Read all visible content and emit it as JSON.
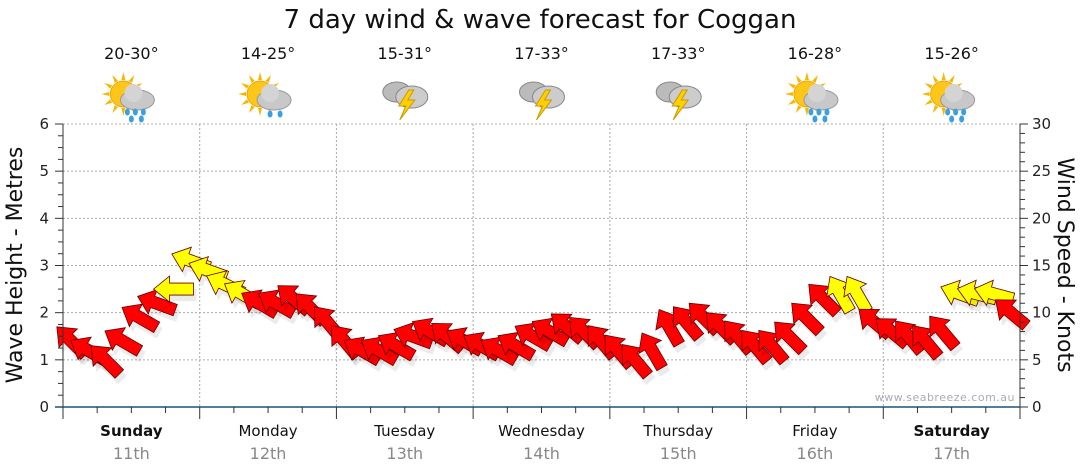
{
  "chart_data": {
    "type": "scatter",
    "title": "7 day wind & wave forecast for Coggan",
    "ylabel_left": "Wave Height - Metres",
    "ylabel_right": "Wind Speed - Knots",
    "ylim_left": [
      0,
      6
    ],
    "ylim_right": [
      0,
      30
    ],
    "yticks_left": [
      "0",
      "1",
      "2",
      "3",
      "4",
      "5",
      "6"
    ],
    "yticks_right": [
      "0",
      "5",
      "10",
      "15",
      "20",
      "25",
      "30"
    ],
    "grid": true,
    "watermark": "www.seabreeze.com.au",
    "days": [
      {
        "day": "Sunday",
        "date": "11th",
        "bold": true,
        "temp": "20-30°",
        "icon": "sun-cloud-rain-icon"
      },
      {
        "day": "Monday",
        "date": "12th",
        "bold": false,
        "temp": "14-25°",
        "icon": "sun-cloud-showers-icon"
      },
      {
        "day": "Tuesday",
        "date": "13th",
        "bold": false,
        "temp": "15-31°",
        "icon": "thunderstorm-icon"
      },
      {
        "day": "Wednesday",
        "date": "14th",
        "bold": false,
        "temp": "17-33°",
        "icon": "thunderstorm-icon"
      },
      {
        "day": "Thursday",
        "date": "15th",
        "bold": false,
        "temp": "17-33°",
        "icon": "thunderstorm-icon"
      },
      {
        "day": "Friday",
        "date": "16th",
        "bold": false,
        "temp": "16-28°",
        "icon": "sun-cloud-rain-icon"
      },
      {
        "day": "Saturday",
        "date": "17th",
        "bold": true,
        "temp": "15-26°",
        "icon": "sun-cloud-rain-icon"
      }
    ],
    "wind_hours": [
      0,
      3,
      6,
      9,
      12,
      15,
      18,
      21
    ],
    "wind_knots": [
      [
        7,
        6,
        5,
        7,
        9.5,
        11,
        12.5,
        15.5
      ],
      [
        14.5,
        13,
        12,
        11,
        11,
        11.5,
        10.5,
        9
      ],
      [
        7,
        6,
        6,
        6.5,
        7.5,
        8,
        7.5,
        7
      ],
      [
        6.5,
        6,
        6.5,
        7.5,
        8,
        8.5,
        8,
        7
      ],
      [
        6,
        5,
        6,
        8.5,
        9,
        9.5,
        8.5,
        7.5
      ],
      [
        6.5,
        6.5,
        7.5,
        9.5,
        11.5,
        12,
        12,
        9
      ],
      [
        8,
        7.5,
        7,
        8,
        12,
        12,
        12,
        10
      ]
    ],
    "wind_arrow_bearing": [
      [
        315,
        300,
        315,
        300,
        300,
        290,
        270,
        290
      ],
      [
        290,
        295,
        300,
        300,
        300,
        310,
        315,
        320
      ],
      [
        320,
        300,
        300,
        300,
        290,
        300,
        310,
        300
      ],
      [
        300,
        300,
        300,
        300,
        300,
        310,
        315,
        320
      ],
      [
        320,
        320,
        330,
        330,
        320,
        315,
        315,
        320
      ],
      [
        320,
        320,
        315,
        315,
        315,
        330,
        330,
        310
      ],
      [
        310,
        320,
        320,
        320,
        290,
        285,
        285,
        310
      ]
    ],
    "wind_color": [
      [
        "r",
        "r",
        "r",
        "r",
        "r",
        "r",
        "y",
        "y"
      ],
      [
        "y",
        "y",
        "y",
        "r",
        "r",
        "r",
        "r",
        "r"
      ],
      [
        "r",
        "r",
        "r",
        "r",
        "r",
        "r",
        "r",
        "r"
      ],
      [
        "r",
        "r",
        "r",
        "r",
        "r",
        "r",
        "r",
        "r"
      ],
      [
        "r",
        "r",
        "r",
        "r",
        "r",
        "r",
        "r",
        "r"
      ],
      [
        "r",
        "r",
        "r",
        "r",
        "r",
        "y",
        "y",
        "r"
      ],
      [
        "r",
        "r",
        "r",
        "r",
        "y",
        "y",
        "y",
        "r"
      ]
    ],
    "colors": {
      "r": "#ff0000",
      "y": "#ffff00",
      "axis": "#1a5276",
      "grid": "#aaaaaa"
    }
  }
}
